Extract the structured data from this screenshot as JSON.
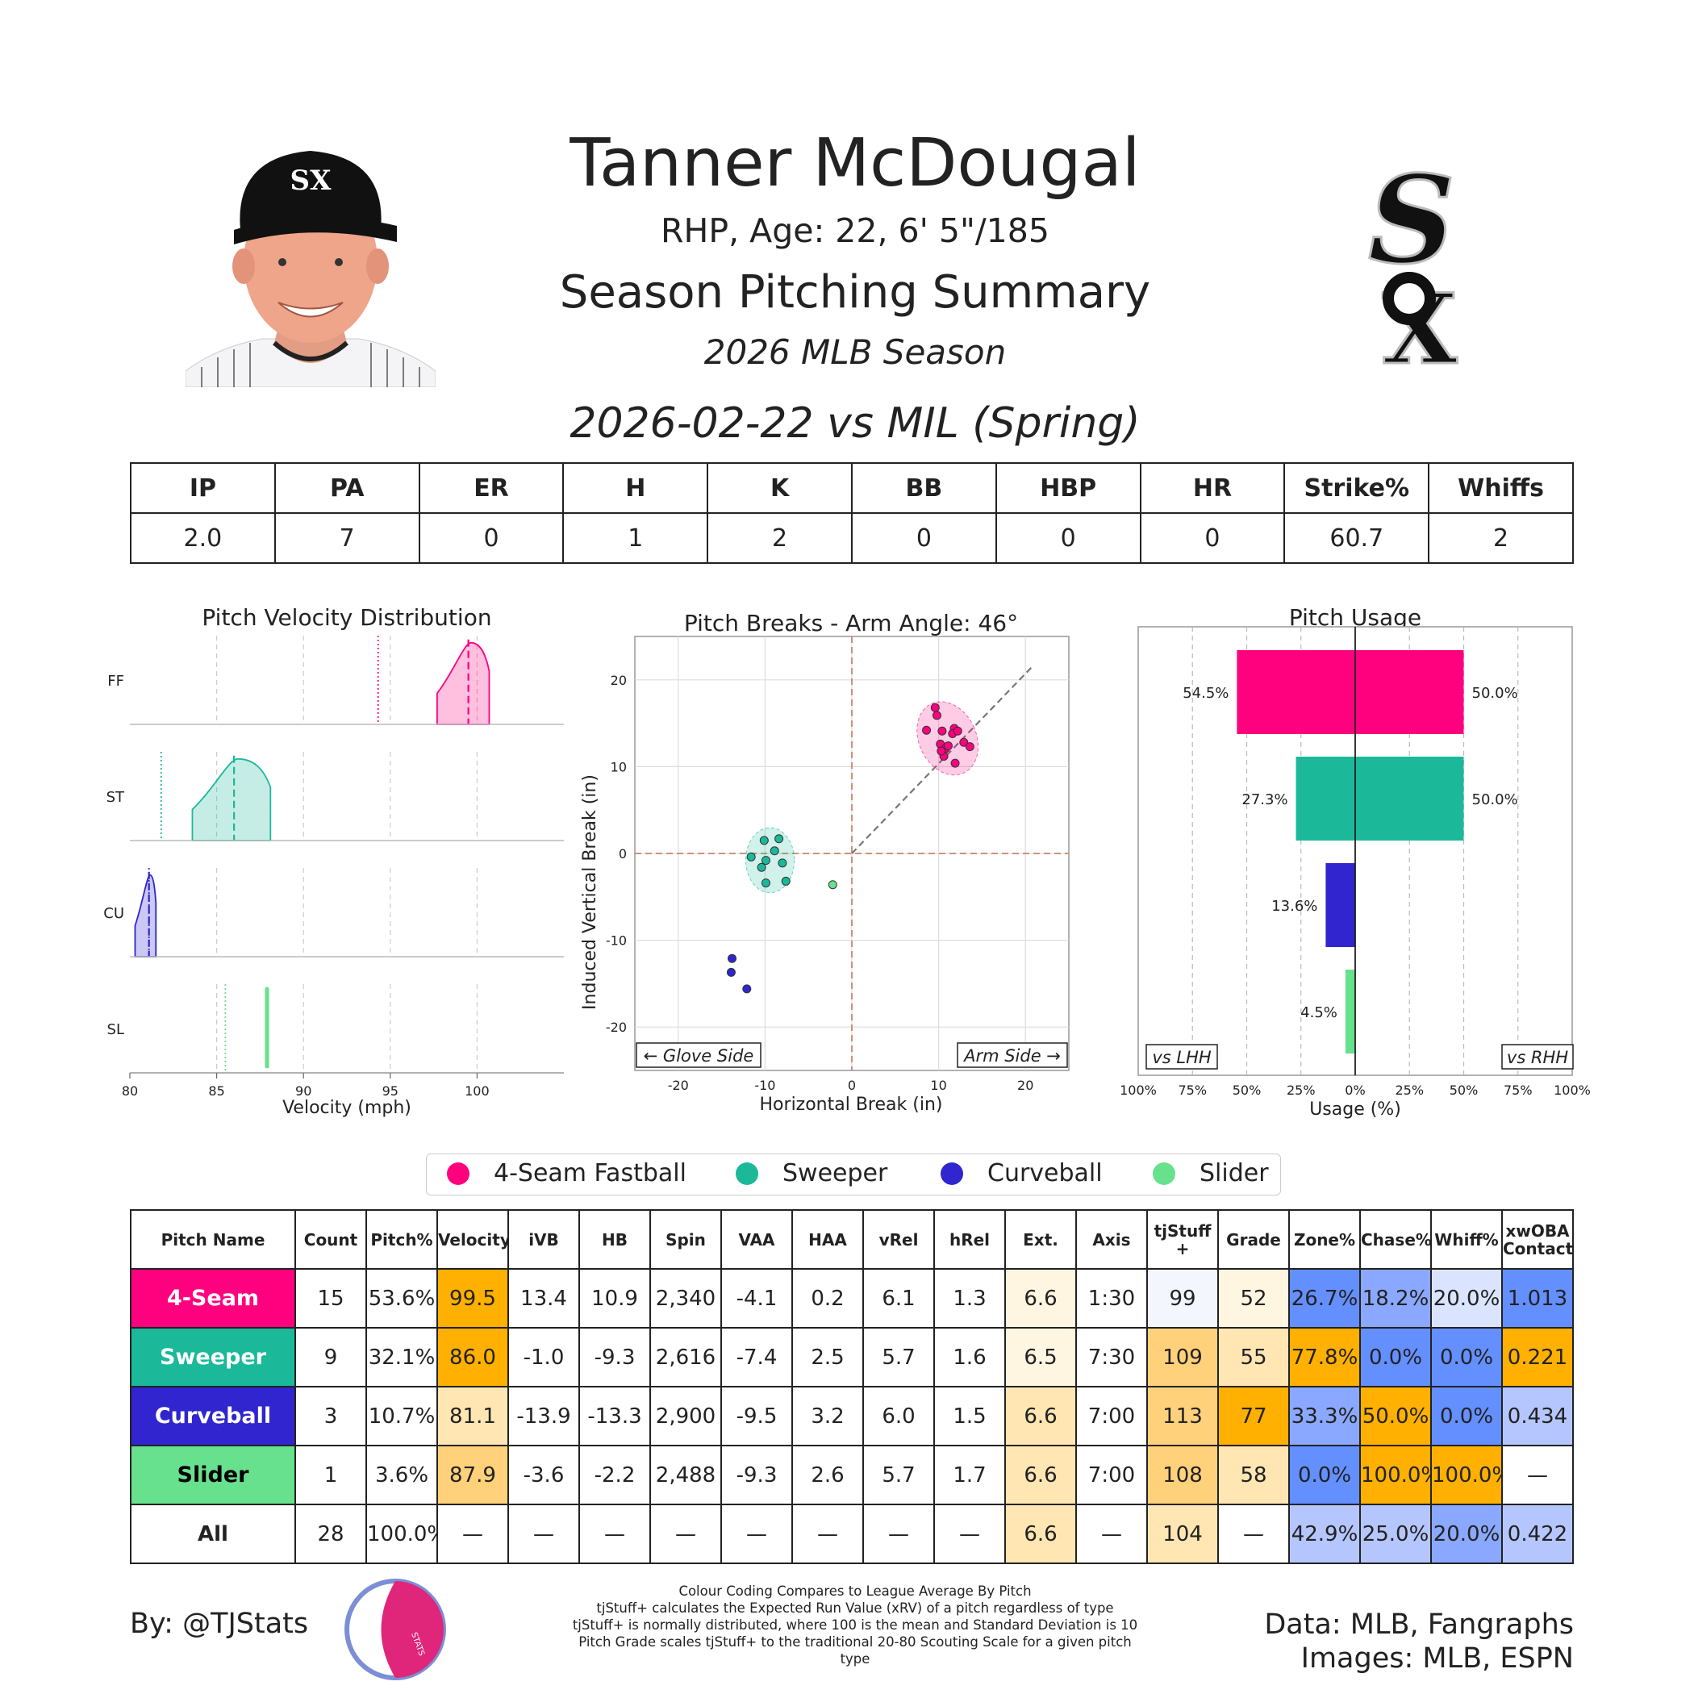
{
  "header": {
    "name": "Tanner McDougal",
    "bio": "RHP, Age: 22, 6' 5\"/185",
    "summary_title": "Season Pitching Summary",
    "season": "2026 MLB Season",
    "game": "2026-02-22 vs MIL (Spring)",
    "team_logo_text": "SOX"
  },
  "colors": {
    "ff": "#ff007f",
    "st": "#1bb999",
    "cu": "#3025ce",
    "sl": "#67e18d",
    "orange_strong": "#ffb000",
    "orange_mid": "#ffd17a",
    "orange_light": "#ffe6b3",
    "orange_faint": "#fff6e2",
    "blue_strong": "#648fff",
    "blue_mid": "#8aa8ff",
    "blue_light": "#b5c6ff",
    "blue_faint": "#dbe4ff",
    "neutral_faint": "#f3f6fc"
  },
  "stats": {
    "headers": [
      "IP",
      "PA",
      "ER",
      "H",
      "K",
      "BB",
      "HBP",
      "HR",
      "Strike%",
      "Whiffs"
    ],
    "values": [
      "2.0",
      "7",
      "0",
      "1",
      "2",
      "0",
      "0",
      "0",
      "60.7",
      "2"
    ]
  },
  "velocity": {
    "title": "Pitch Velocity Distribution",
    "xlabel": "Velocity (mph)",
    "ticks": [
      "80",
      "85",
      "90",
      "95",
      "100"
    ],
    "rows": [
      "FF",
      "ST",
      "CU",
      "SL"
    ]
  },
  "breaks": {
    "title": "Pitch Breaks - Arm Angle: 46°",
    "xlabel": "Horizontal Break (in)",
    "ylabel": "Induced Vertical Break (in)",
    "glove_side": "← Glove Side",
    "arm_side": "Arm Side →",
    "xticks": [
      "-20",
      "-10",
      "0",
      "10",
      "20"
    ],
    "yticks": [
      "20",
      "10",
      "0",
      "-10",
      "-20"
    ]
  },
  "usage": {
    "title": "Pitch Usage",
    "xlabel": "Usage (%)",
    "vs_lhh": "vs LHH",
    "vs_rhh": "vs RHH",
    "ticks": [
      "100%",
      "75%",
      "50%",
      "25%",
      "0%",
      "25%",
      "50%",
      "75%",
      "100%"
    ],
    "lhh_labels": [
      "54.5%",
      "27.3%",
      "13.6%",
      "4.5%"
    ],
    "rhh_labels": [
      "50.0%",
      "50.0%"
    ]
  },
  "legend": [
    "4-Seam Fastball",
    "Sweeper",
    "Curveball",
    "Slider"
  ],
  "pitch_table": {
    "headers": [
      "Pitch Name",
      "Count",
      "Pitch%",
      "Velocity",
      "iVB",
      "HB",
      "Spin",
      "VAA",
      "HAA",
      "vRel",
      "hRel",
      "Ext.",
      "Axis",
      "tjStuff +",
      "Grade",
      "Zone%",
      "Chase%",
      "Whiff%",
      "xwOBA Contact"
    ],
    "rows": [
      [
        "4-Seam",
        "15",
        "53.6%",
        "99.5",
        "13.4",
        "10.9",
        "2,340",
        "-4.1",
        "0.2",
        "6.1",
        "1.3",
        "6.6",
        "1:30",
        "99",
        "52",
        "26.7%",
        "18.2%",
        "20.0%",
        "1.013"
      ],
      [
        "Sweeper",
        "9",
        "32.1%",
        "86.0",
        "-1.0",
        "-9.3",
        "2,616",
        "-7.4",
        "2.5",
        "5.7",
        "1.6",
        "6.5",
        "7:30",
        "109",
        "55",
        "77.8%",
        "0.0%",
        "0.0%",
        "0.221"
      ],
      [
        "Curveball",
        "3",
        "10.7%",
        "81.1",
        "-13.9",
        "-13.3",
        "2,900",
        "-9.5",
        "3.2",
        "6.0",
        "1.5",
        "6.6",
        "7:00",
        "113",
        "77",
        "33.3%",
        "50.0%",
        "0.0%",
        "0.434"
      ],
      [
        "Slider",
        "1",
        "3.6%",
        "87.9",
        "-3.6",
        "-2.2",
        "2,488",
        "-9.3",
        "2.6",
        "5.7",
        "1.7",
        "6.6",
        "7:00",
        "108",
        "58",
        "0.0%",
        "100.0%",
        "100.0%",
        "—"
      ],
      [
        "All",
        "28",
        "100.0%",
        "—",
        "—",
        "—",
        "—",
        "—",
        "—",
        "—",
        "—",
        "6.6",
        "—",
        "104",
        "—",
        "42.9%",
        "25.0%",
        "20.0%",
        "0.422"
      ]
    ],
    "cell_colors": [
      [
        "ff",
        "",
        "",
        "orange_strong",
        "",
        "",
        "",
        "",
        "",
        "",
        "",
        "orange_faint",
        "",
        "neutral_faint",
        "orange_faint",
        "blue_strong",
        "blue_mid",
        "blue_faint",
        "blue_strong"
      ],
      [
        "st",
        "",
        "",
        "orange_strong",
        "",
        "",
        "",
        "",
        "",
        "",
        "",
        "orange_faint",
        "",
        "orange_mid",
        "orange_light",
        "orange_strong",
        "blue_strong",
        "blue_strong",
        "orange_strong"
      ],
      [
        "cu",
        "",
        "",
        "orange_light",
        "",
        "",
        "",
        "",
        "",
        "",
        "",
        "orange_light",
        "",
        "orange_mid",
        "orange_strong",
        "blue_mid",
        "orange_strong",
        "blue_strong",
        "blue_light"
      ],
      [
        "sl",
        "",
        "",
        "orange_mid",
        "",
        "",
        "",
        "",
        "",
        "",
        "",
        "orange_light",
        "",
        "orange_mid",
        "orange_light",
        "blue_strong",
        "orange_strong",
        "orange_strong",
        ""
      ],
      [
        "",
        "",
        "",
        "",
        "",
        "",
        "",
        "",
        "",
        "",
        "",
        "orange_light",
        "",
        "orange_light",
        "",
        "blue_light",
        "blue_light",
        "blue_mid",
        "blue_light"
      ]
    ]
  },
  "chart_data": [
    {
      "type": "area",
      "title": "Pitch Velocity Distribution",
      "xlabel": "Velocity (mph)",
      "xlim": [
        80,
        105
      ],
      "series": [
        {
          "name": "FF",
          "color": "ff",
          "range": [
            97.7,
            100.7
          ],
          "mean": 99.5,
          "league_avg": 94.3
        },
        {
          "name": "ST",
          "color": "st",
          "range": [
            83.6,
            88.1
          ],
          "mean": 86.0,
          "league_avg": 81.8
        },
        {
          "name": "CU",
          "color": "cu",
          "range": [
            80.3,
            81.5
          ],
          "mean": 81.1,
          "league_avg": 81.1
        },
        {
          "name": "SL",
          "color": "sl",
          "range": [
            87.9,
            87.9
          ],
          "mean": 87.9,
          "league_avg": 85.5,
          "extra_line": 85.0
        }
      ]
    },
    {
      "type": "scatter",
      "title": "Pitch Breaks - Arm Angle: 46°",
      "xlabel": "Horizontal Break (in)",
      "ylabel": "Induced Vertical Break (in)",
      "xlim": [
        -25,
        25
      ],
      "ylim": [
        -25,
        25
      ],
      "arm_angle": 46,
      "series": [
        {
          "name": "4-Seam Fastball",
          "color": "ff",
          "points": [
            [
              9.6,
              16.8
            ],
            [
              9.8,
              15.9
            ],
            [
              8.6,
              14.2
            ],
            [
              10.4,
              14.1
            ],
            [
              11.8,
              14.4
            ],
            [
              11.6,
              13.8
            ],
            [
              10.2,
              12.6
            ],
            [
              10.8,
              12.1
            ],
            [
              12.9,
              12.8
            ],
            [
              13.6,
              12.3
            ],
            [
              10.6,
              11.2
            ],
            [
              11.9,
              10.4
            ],
            [
              10.3,
              11.8
            ],
            [
              11.1,
              12.4
            ],
            [
              12.2,
              14.1
            ]
          ]
        },
        {
          "name": "Sweeper",
          "color": "st",
          "points": [
            [
              -10.1,
              1.5
            ],
            [
              -8.4,
              1.7
            ],
            [
              -8.9,
              0.3
            ],
            [
              -11.6,
              -0.4
            ],
            [
              -9.9,
              -0.8
            ],
            [
              -10.4,
              -1.6
            ],
            [
              -8.0,
              -1.1
            ],
            [
              -9.9,
              -3.4
            ],
            [
              -7.6,
              -3.2
            ]
          ]
        },
        {
          "name": "Curveball",
          "color": "cu",
          "points": [
            [
              -13.8,
              -12.1
            ],
            [
              -13.9,
              -13.7
            ],
            [
              -12.1,
              -15.6
            ]
          ]
        },
        {
          "name": "Slider",
          "color": "sl",
          "points": [
            [
              -2.2,
              -3.6
            ]
          ]
        }
      ]
    },
    {
      "type": "bar",
      "title": "Pitch Usage",
      "xlabel": "Usage (%)",
      "categories": [
        "4-Seam Fastball",
        "Sweeper",
        "Curveball",
        "Slider"
      ],
      "series": [
        {
          "name": "vs LHH",
          "values": [
            54.5,
            27.3,
            13.6,
            4.5
          ]
        },
        {
          "name": "vs RHH",
          "values": [
            50.0,
            50.0,
            0,
            0
          ]
        }
      ],
      "xlim": [
        -100,
        100
      ]
    }
  ],
  "footer": {
    "byline": "By: @TJStats",
    "notes": [
      "Colour Coding Compares to League Average By Pitch",
      "tjStuff+ calculates the Expected Run Value (xRV) of a pitch regardless of type",
      "tjStuff+ is normally distributed, where 100 is the mean and Standard Deviation is 10",
      "Pitch Grade scales tjStuff+ to the traditional 20-80 Scouting Scale for a given pitch type"
    ],
    "credits": [
      "Data: MLB, Fangraphs",
      "Images: MLB, ESPN"
    ],
    "logo_text": "STATS"
  }
}
